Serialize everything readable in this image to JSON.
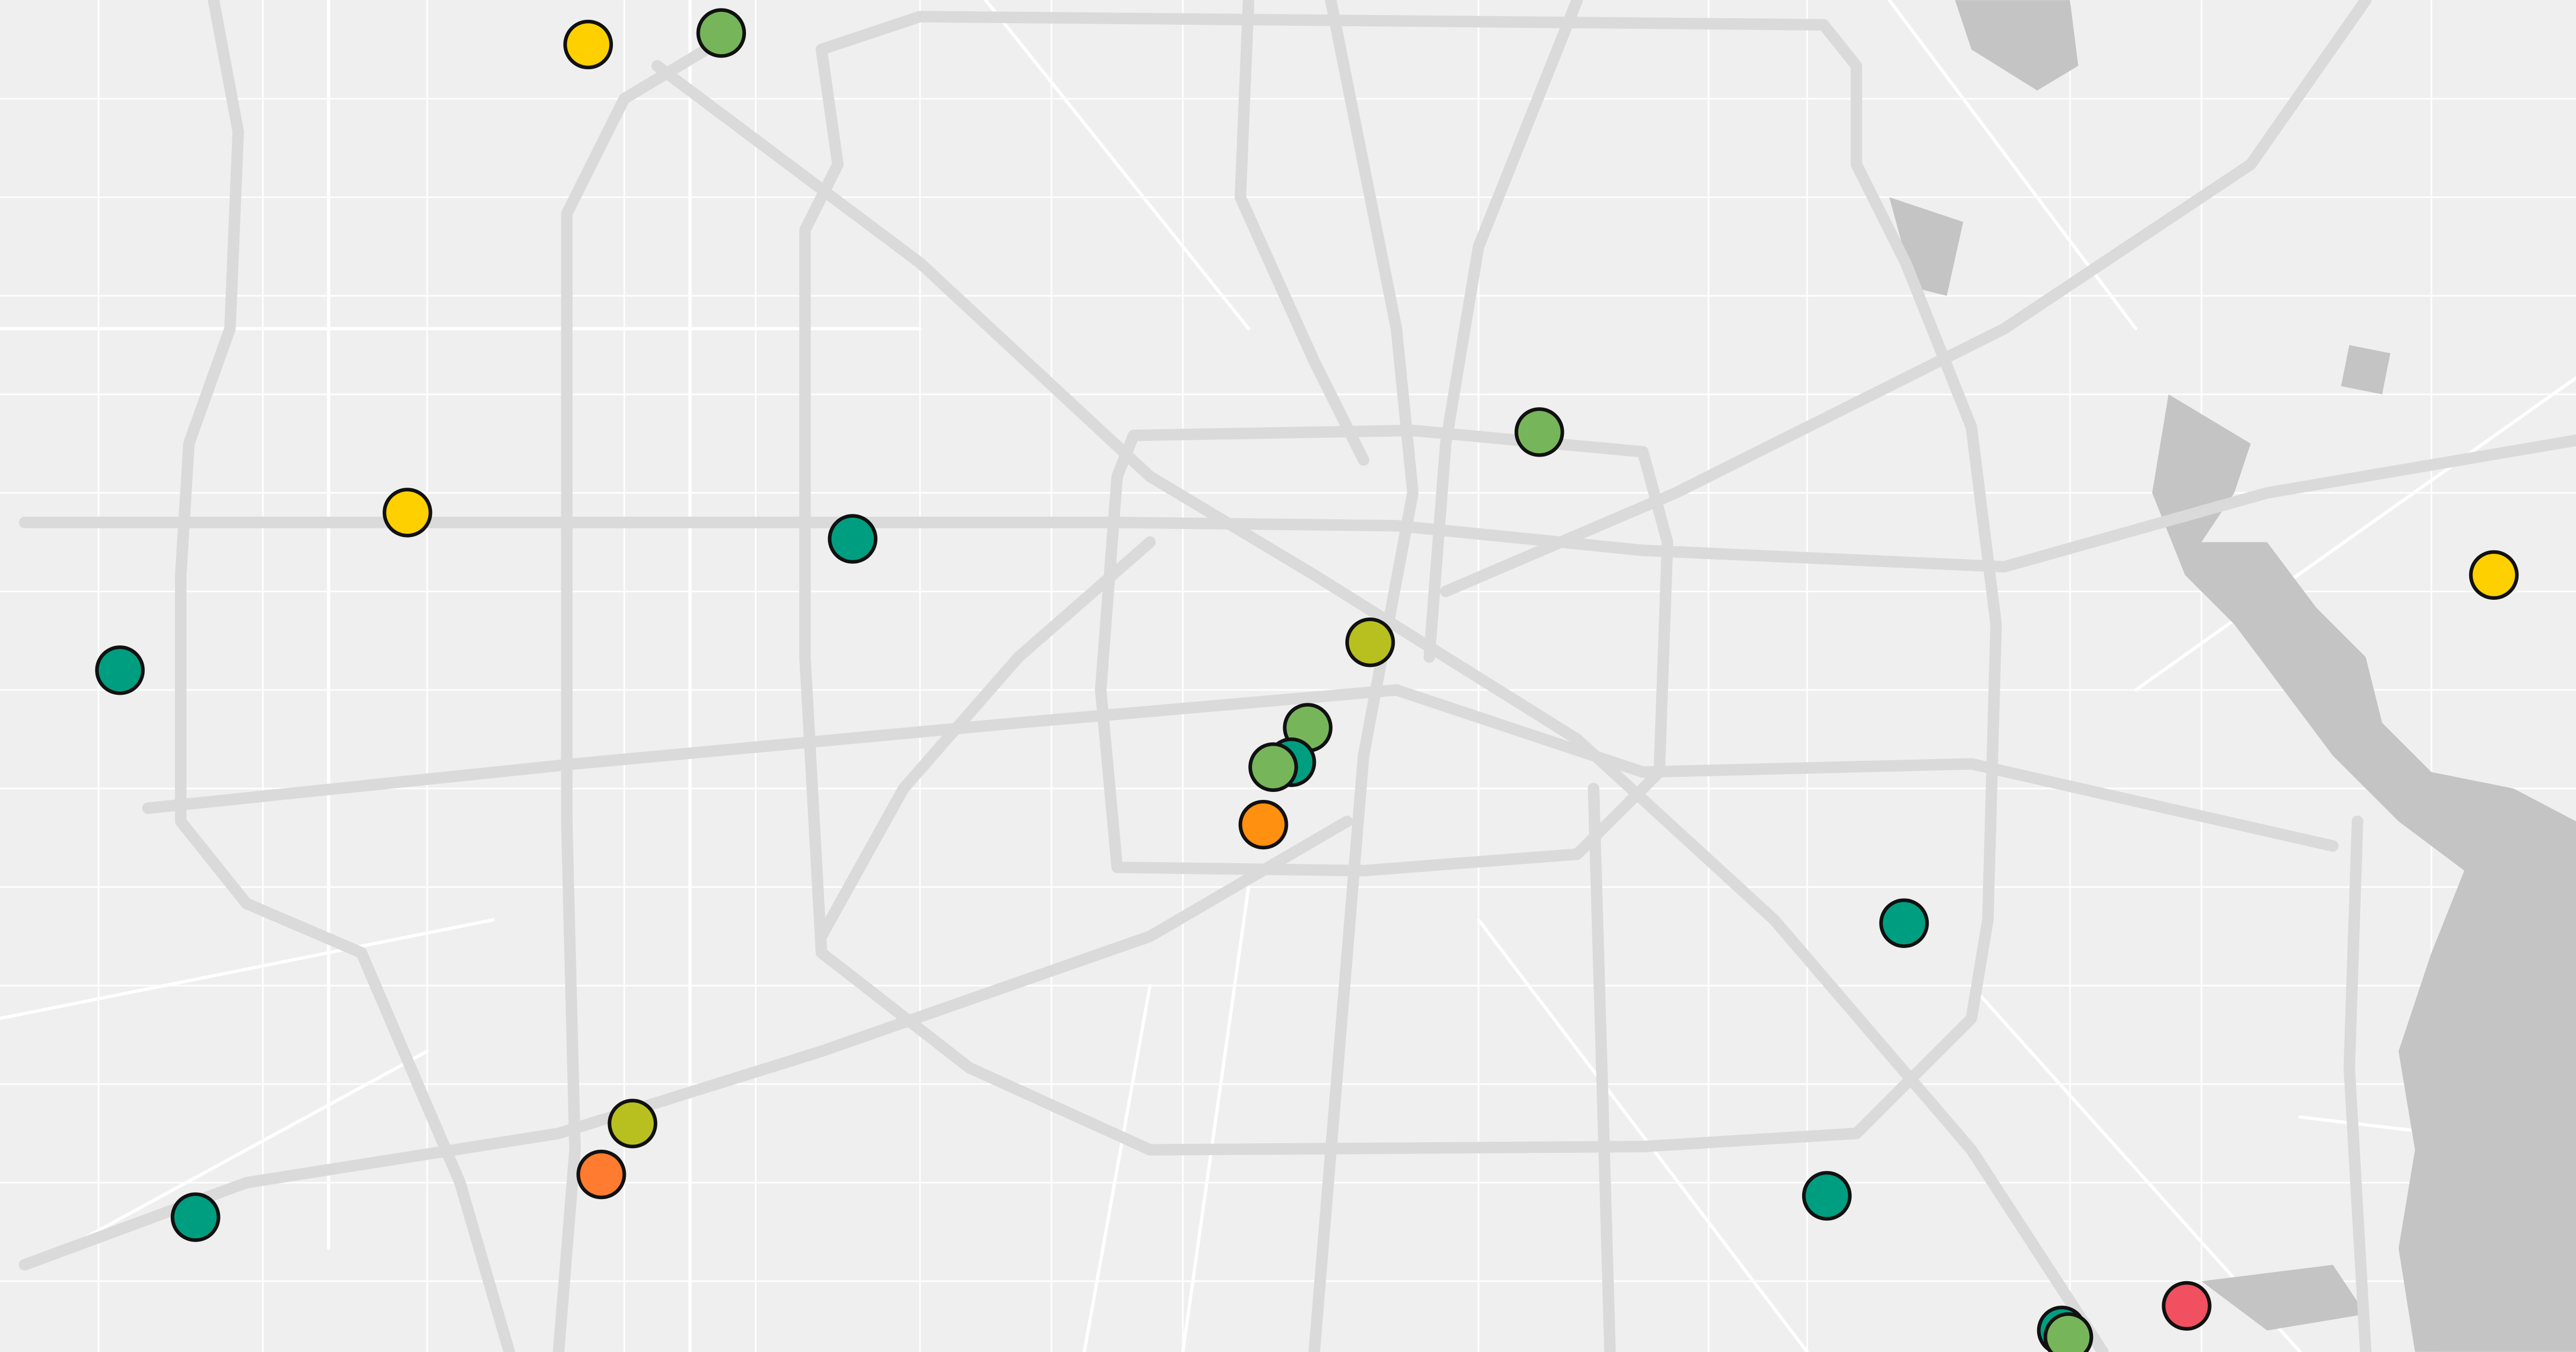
{
  "markers": [
    {
      "color": "#ffd000"
    },
    {
      "color": "#77b55a"
    },
    {
      "color": "#77b55a"
    },
    {
      "color": "#ffd000"
    },
    {
      "color": "#009e80"
    },
    {
      "color": "#009e80"
    },
    {
      "color": "#b8c020"
    },
    {
      "color": "#77b55a"
    },
    {
      "color": "#009e80"
    },
    {
      "color": "#77b55a"
    },
    {
      "color": "#ff9010"
    },
    {
      "color": "#009e80"
    },
    {
      "color": "#ffd000"
    },
    {
      "color": "#b8c020"
    },
    {
      "color": "#ff7b30"
    },
    {
      "color": "#009e80"
    },
    {
      "color": "#009e80"
    },
    {
      "color": "#009e80"
    },
    {
      "color": "#77b55a"
    },
    {
      "color": "#f05060"
    }
  ]
}
